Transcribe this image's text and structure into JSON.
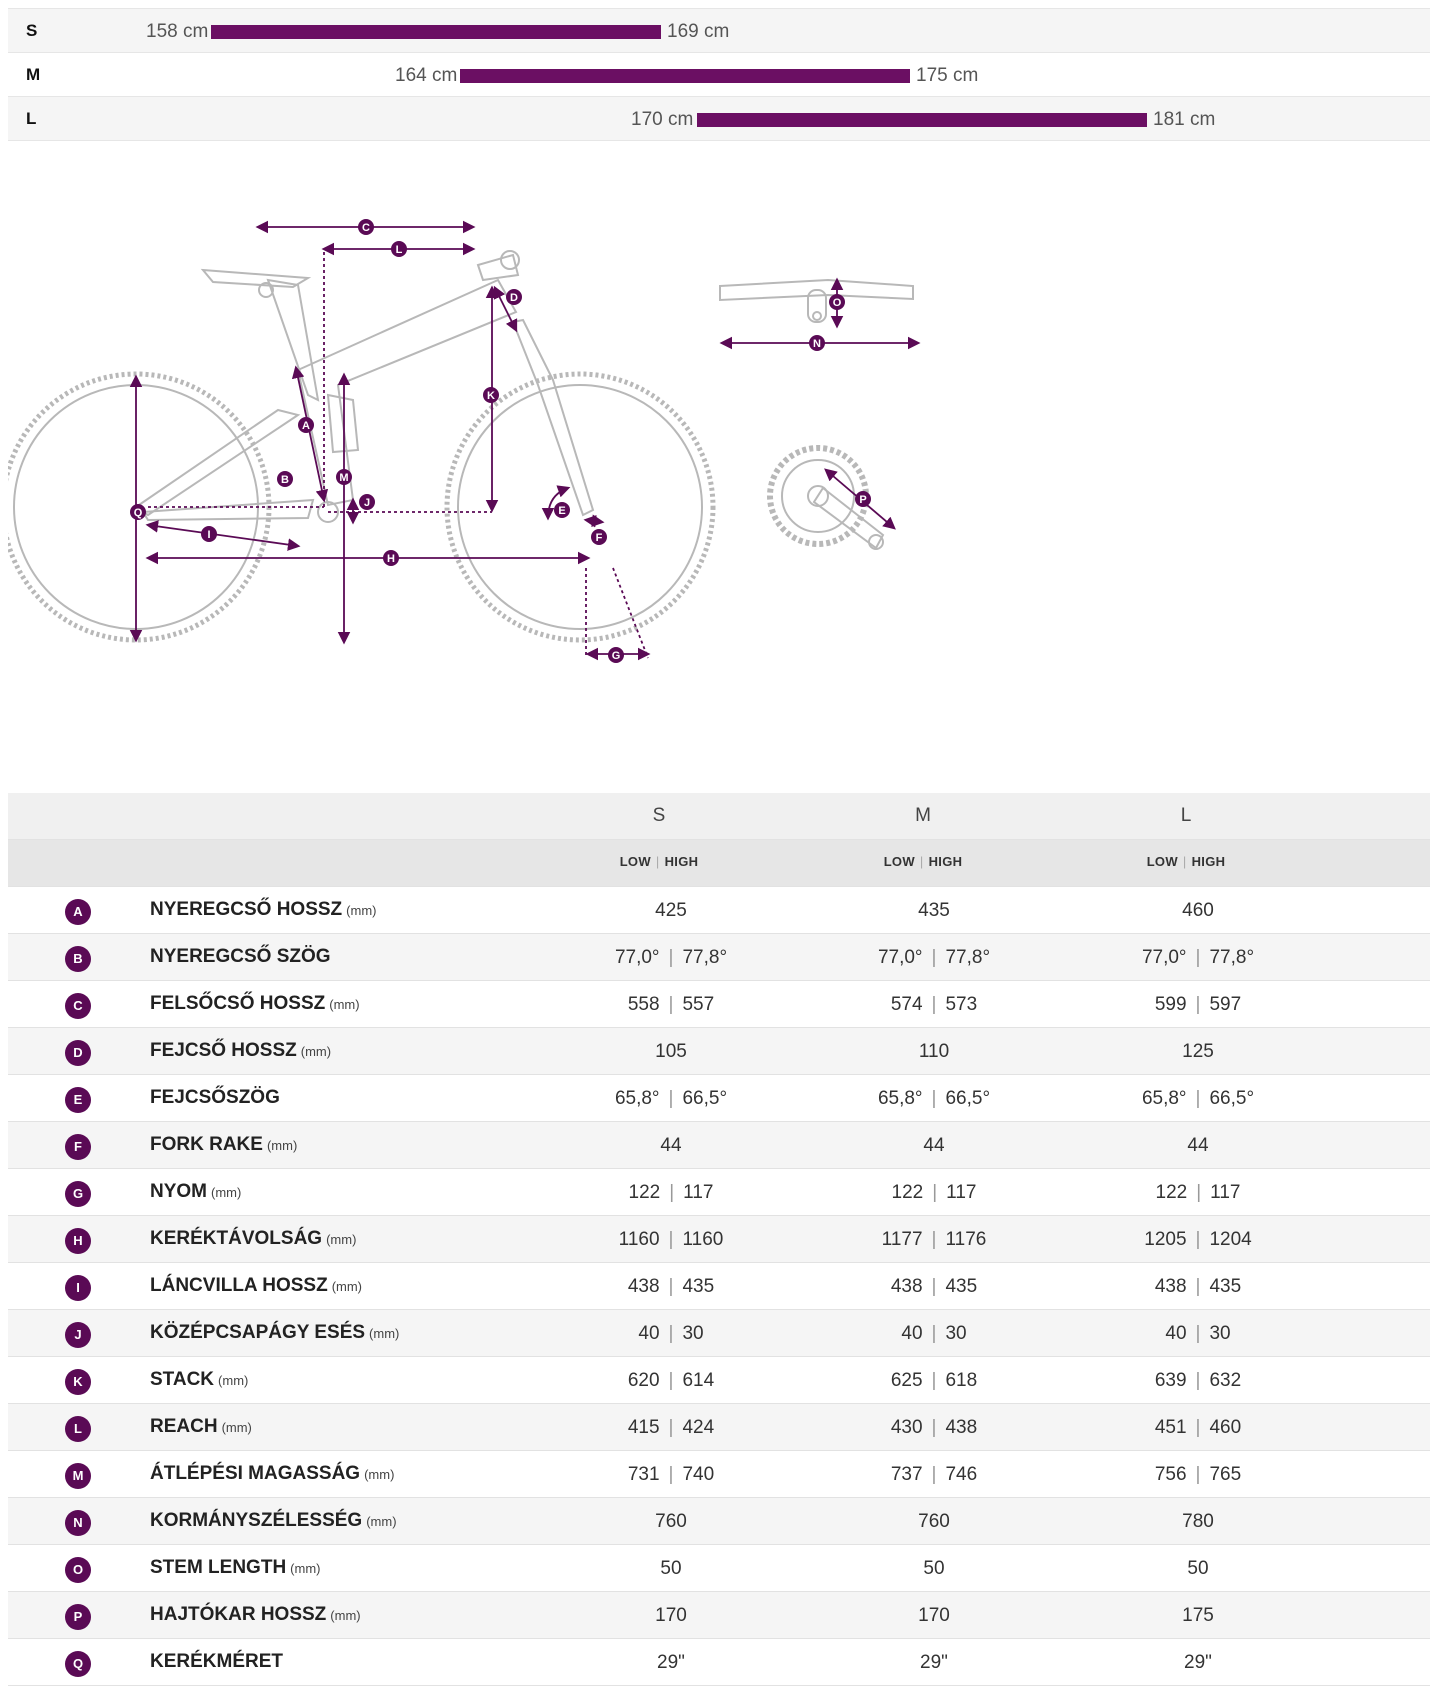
{
  "size_chart": [
    {
      "size": "S",
      "min": "158 cm",
      "max": "169 cm",
      "min_cm": 158,
      "max_cm": 169
    },
    {
      "size": "M",
      "min": "164 cm",
      "max": "175 cm",
      "min_cm": 164,
      "max_cm": 175
    },
    {
      "size": "L",
      "min": "170 cm",
      "max": "181 cm",
      "min_cm": 170,
      "max_cm": 181
    }
  ],
  "colors": {
    "accent": "#6b0f63",
    "badge": "#5a0a55",
    "frame_line": "#b8b8b8"
  },
  "diagram": {
    "letters": {
      "A": "A",
      "B": "B",
      "C": "C",
      "D": "D",
      "E": "E",
      "F": "F",
      "G": "G",
      "H": "H",
      "I": "I",
      "J": "J",
      "K": "K",
      "L": "L",
      "M": "M",
      "N": "N",
      "O": "O",
      "P": "P",
      "Q": "Q"
    }
  },
  "table": {
    "sizes": [
      "S",
      "M",
      "L"
    ],
    "sub_low": "LOW",
    "sub_sep": "|",
    "sub_high": "HIGH",
    "rows": [
      {
        "letter": "A",
        "name": "NYEREGCSŐ HOSSZ",
        "unit": "(mm)",
        "s": [
          "425"
        ],
        "m": [
          "435"
        ],
        "l": [
          "460"
        ]
      },
      {
        "letter": "B",
        "name": "NYEREGCSŐ SZÖG",
        "unit": "",
        "s": [
          "77,0°",
          "77,8°"
        ],
        "m": [
          "77,0°",
          "77,8°"
        ],
        "l": [
          "77,0°",
          "77,8°"
        ]
      },
      {
        "letter": "C",
        "name": "FELSŐCSŐ HOSSZ",
        "unit": "(mm)",
        "s": [
          "558",
          "557"
        ],
        "m": [
          "574",
          "573"
        ],
        "l": [
          "599",
          "597"
        ]
      },
      {
        "letter": "D",
        "name": "FEJCSŐ HOSSZ",
        "unit": "(mm)",
        "s": [
          "105"
        ],
        "m": [
          "110"
        ],
        "l": [
          "125"
        ]
      },
      {
        "letter": "E",
        "name": "FEJCSŐSZÖG",
        "unit": "",
        "s": [
          "65,8°",
          "66,5°"
        ],
        "m": [
          "65,8°",
          "66,5°"
        ],
        "l": [
          "65,8°",
          "66,5°"
        ]
      },
      {
        "letter": "F",
        "name": "FORK RAKE",
        "unit": "(mm)",
        "s": [
          "44"
        ],
        "m": [
          "44"
        ],
        "l": [
          "44"
        ]
      },
      {
        "letter": "G",
        "name": "NYOM",
        "unit": "(mm)",
        "s": [
          "122",
          "117"
        ],
        "m": [
          "122",
          "117"
        ],
        "l": [
          "122",
          "117"
        ]
      },
      {
        "letter": "H",
        "name": "KERÉKTÁVOLSÁG",
        "unit": "(mm)",
        "s": [
          "1160",
          "1160"
        ],
        "m": [
          "1177",
          "1176"
        ],
        "l": [
          "1205",
          "1204"
        ]
      },
      {
        "letter": "I",
        "name": "LÁNCVILLA HOSSZ",
        "unit": "(mm)",
        "s": [
          "438",
          "435"
        ],
        "m": [
          "438",
          "435"
        ],
        "l": [
          "438",
          "435"
        ]
      },
      {
        "letter": "J",
        "name": "KÖZÉPCSAPÁGY ESÉS",
        "unit": "(mm)",
        "s": [
          "40",
          "30"
        ],
        "m": [
          "40",
          "30"
        ],
        "l": [
          "40",
          "30"
        ]
      },
      {
        "letter": "K",
        "name": "STACK",
        "unit": "(mm)",
        "s": [
          "620",
          "614"
        ],
        "m": [
          "625",
          "618"
        ],
        "l": [
          "639",
          "632"
        ]
      },
      {
        "letter": "L",
        "name": "REACH",
        "unit": "(mm)",
        "s": [
          "415",
          "424"
        ],
        "m": [
          "430",
          "438"
        ],
        "l": [
          "451",
          "460"
        ]
      },
      {
        "letter": "M",
        "name": "ÁTLÉPÉSI MAGASSÁG",
        "unit": "(mm)",
        "s": [
          "731",
          "740"
        ],
        "m": [
          "737",
          "746"
        ],
        "l": [
          "756",
          "765"
        ]
      },
      {
        "letter": "N",
        "name": "KORMÁNYSZÉLESSÉG",
        "unit": "(mm)",
        "s": [
          "760"
        ],
        "m": [
          "760"
        ],
        "l": [
          "780"
        ]
      },
      {
        "letter": "O",
        "name": "STEM LENGTH",
        "unit": "(mm)",
        "s": [
          "50"
        ],
        "m": [
          "50"
        ],
        "l": [
          "50"
        ]
      },
      {
        "letter": "P",
        "name": "HAJTÓKAR HOSSZ",
        "unit": "(mm)",
        "s": [
          "170"
        ],
        "m": [
          "170"
        ],
        "l": [
          "175"
        ]
      },
      {
        "letter": "Q",
        "name": "KERÉKMÉRET",
        "unit": "",
        "s": [
          "29\""
        ],
        "m": [
          "29\""
        ],
        "l": [
          "29\""
        ]
      }
    ]
  }
}
